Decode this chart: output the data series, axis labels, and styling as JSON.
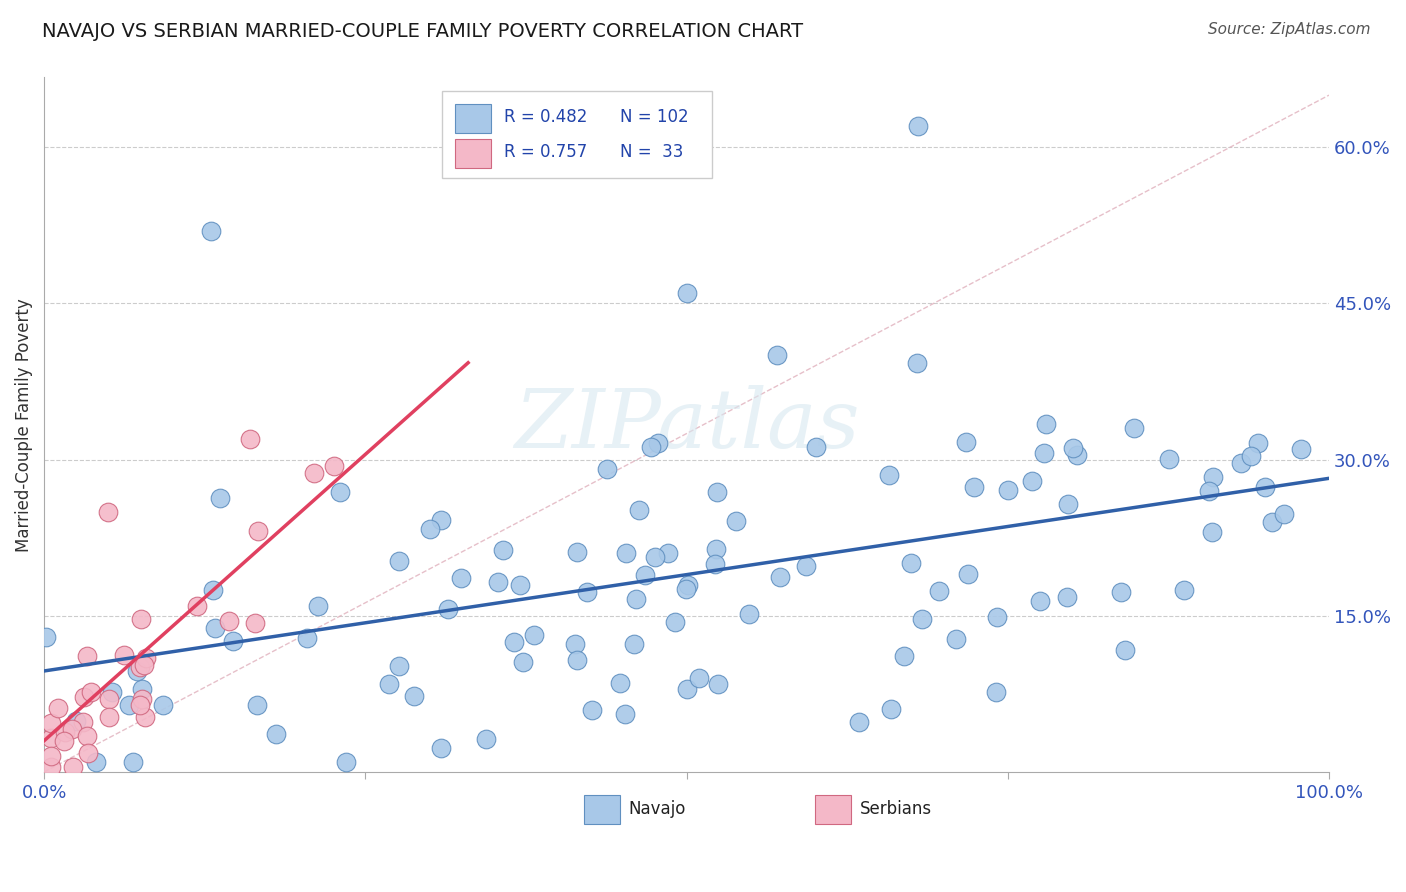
{
  "title": "NAVAJO VS SERBIAN MARRIED-COUPLE FAMILY POVERTY CORRELATION CHART",
  "source": "Source: ZipAtlas.com",
  "ylabel_label": "Married-Couple Family Poverty",
  "xlim": [
    0,
    1.0
  ],
  "ylim": [
    0,
    0.667
  ],
  "ytick_positions": [
    0.15,
    0.3,
    0.45,
    0.6
  ],
  "ytick_labels": [
    "15.0%",
    "30.0%",
    "45.0%",
    "60.0%"
  ],
  "navajo_color": "#a8c8e8",
  "serbian_color": "#f4b8c8",
  "navajo_edge_color": "#6090c0",
  "serbian_edge_color": "#d06880",
  "navajo_line_color": "#3060a8",
  "serbian_line_color": "#e04060",
  "diagonal_color": "#e8a0b0",
  "R_navajo": 0.482,
  "N_navajo": 102,
  "R_serbian": 0.757,
  "N_serbian": 33,
  "legend_label_navajo": "Navajo",
  "legend_label_serbian": "Serbians",
  "title_fontsize": 14,
  "source_fontsize": 11,
  "tick_label_fontsize": 13,
  "ylabel_fontsize": 12
}
